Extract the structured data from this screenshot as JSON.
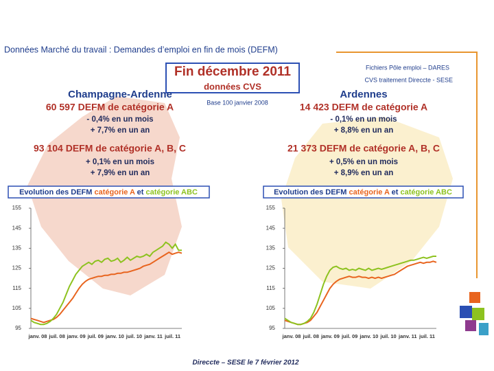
{
  "header": {
    "title": "Données Marché du travail : Demandes d’emploi en fin de mois (DEFM)",
    "box_title": "Fin décembre 2011",
    "box_subtitle": "données CVS",
    "source_1": "Fichiers Pôle emploi – DARES",
    "source_2": "CVS traitement Direccte - SESE",
    "base_note": "Base 100 janvier 2008",
    "footer": "Direccte – SESE le 7 février 2012"
  },
  "regions": [
    {
      "name": "Champagne-Ardenne",
      "cat_a": "60 597  DEFM de catégorie A",
      "cat_a_month": "- 0,4% en un mois",
      "cat_a_year": "+ 7,7% en un an",
      "cat_abc": "93 104  DEFM de catégorie A, B, C",
      "cat_abc_month": "+ 0,1% en un mois",
      "cat_abc_year": "+ 7,9% en un an"
    },
    {
      "name": "Ardennes",
      "cat_a": "14 423  DEFM de catégorie A",
      "cat_a_month": "- 0,1% en un mois",
      "cat_a_year": "+ 8,8% en un an",
      "cat_abc": "21 373  DEFM de catégorie A, B, C",
      "cat_abc_month": "+ 0,5% en un mois",
      "cat_abc_year": "+ 8,9% en un an"
    }
  ],
  "chart_data": [
    {
      "type": "line",
      "title": "Evolution des DEFM",
      "title_joiner": "et",
      "categories": [
        "janv. 08",
        null,
        null,
        null,
        null,
        null,
        "juil. 08",
        null,
        null,
        null,
        null,
        null,
        "janv. 09",
        null,
        null,
        null,
        null,
        null,
        "juil. 09",
        null,
        null,
        null,
        null,
        null,
        "janv. 10",
        null,
        null,
        null,
        null,
        null,
        "juil. 10",
        null,
        null,
        null,
        null,
        null,
        "janv. 11",
        null,
        null,
        null,
        null,
        null,
        "juil. 11",
        null,
        null,
        null,
        null,
        null
      ],
      "ylim": [
        95,
        155
      ],
      "yticks": [
        95,
        105,
        115,
        125,
        135,
        145,
        155
      ],
      "series": [
        {
          "name": "catégorie A",
          "color": "#e8641e",
          "values": [
            100,
            99.5,
            99,
            98.5,
            98,
            98.5,
            99,
            99.5,
            100.5,
            102,
            104,
            106,
            108,
            110,
            112.5,
            115,
            117,
            118.5,
            119.5,
            120,
            120.5,
            121,
            121,
            121.5,
            121.5,
            122,
            122,
            122.5,
            122.5,
            123,
            123,
            123.5,
            124,
            124.5,
            125,
            126,
            126.5,
            127,
            128,
            129,
            130,
            131,
            132,
            133,
            132,
            132.5,
            133,
            132.5
          ]
        },
        {
          "name": "catégorie ABC",
          "color": "#8dc21f",
          "values": [
            99,
            98,
            97.5,
            97,
            97,
            97.5,
            98.5,
            100,
            102,
            105,
            108,
            112,
            116,
            119,
            122,
            124,
            126,
            127,
            128,
            127,
            128.5,
            129,
            128,
            129.5,
            130,
            128.5,
            129,
            130,
            128,
            129,
            130.5,
            129,
            130,
            131,
            130.5,
            131,
            132,
            131,
            133,
            134,
            135,
            136,
            138,
            137,
            135,
            137,
            134,
            134
          ]
        }
      ]
    },
    {
      "type": "line",
      "title": "Evolution des DEFM",
      "title_joiner": "et",
      "categories": [
        "janv. 08",
        null,
        null,
        null,
        null,
        null,
        "juil. 08",
        null,
        null,
        null,
        null,
        null,
        "janv. 09",
        null,
        null,
        null,
        null,
        null,
        "juil. 09",
        null,
        null,
        null,
        null,
        null,
        "janv. 10",
        null,
        null,
        null,
        null,
        null,
        "juil. 10",
        null,
        null,
        null,
        null,
        null,
        "janv. 11",
        null,
        null,
        null,
        null,
        null,
        "juil. 11",
        null,
        null,
        null,
        null,
        null
      ],
      "ylim": [
        95,
        155
      ],
      "yticks": [
        95,
        105,
        115,
        125,
        135,
        145,
        155
      ],
      "series": [
        {
          "name": "catégorie A",
          "color": "#e8641e",
          "values": [
            99,
            98.5,
            98,
            97.5,
            97,
            97,
            97.5,
            98,
            99,
            101,
            103,
            106,
            109,
            112,
            115,
            117,
            118.5,
            119.5,
            120,
            120.5,
            121,
            120.5,
            120.5,
            121,
            120.5,
            120.5,
            120,
            120.5,
            120,
            120.5,
            120,
            120.5,
            121,
            121.5,
            122,
            123,
            124,
            125,
            126,
            126.5,
            127,
            127.5,
            128,
            127.5,
            128,
            128,
            128.5,
            128
          ]
        },
        {
          "name": "catégorie ABC",
          "color": "#8dc21f",
          "values": [
            100,
            99,
            98,
            97.5,
            97,
            97,
            97.5,
            98.5,
            100,
            103,
            107,
            112,
            117,
            121,
            124,
            125.5,
            126,
            125,
            124.5,
            125,
            124,
            124.5,
            124,
            125,
            124.5,
            124,
            125,
            124,
            124.5,
            125,
            124.5,
            125,
            125.5,
            126,
            126.5,
            127,
            127.5,
            128,
            128.5,
            129,
            129,
            129.5,
            130,
            130.5,
            130,
            130.5,
            131,
            131
          ]
        }
      ]
    }
  ]
}
